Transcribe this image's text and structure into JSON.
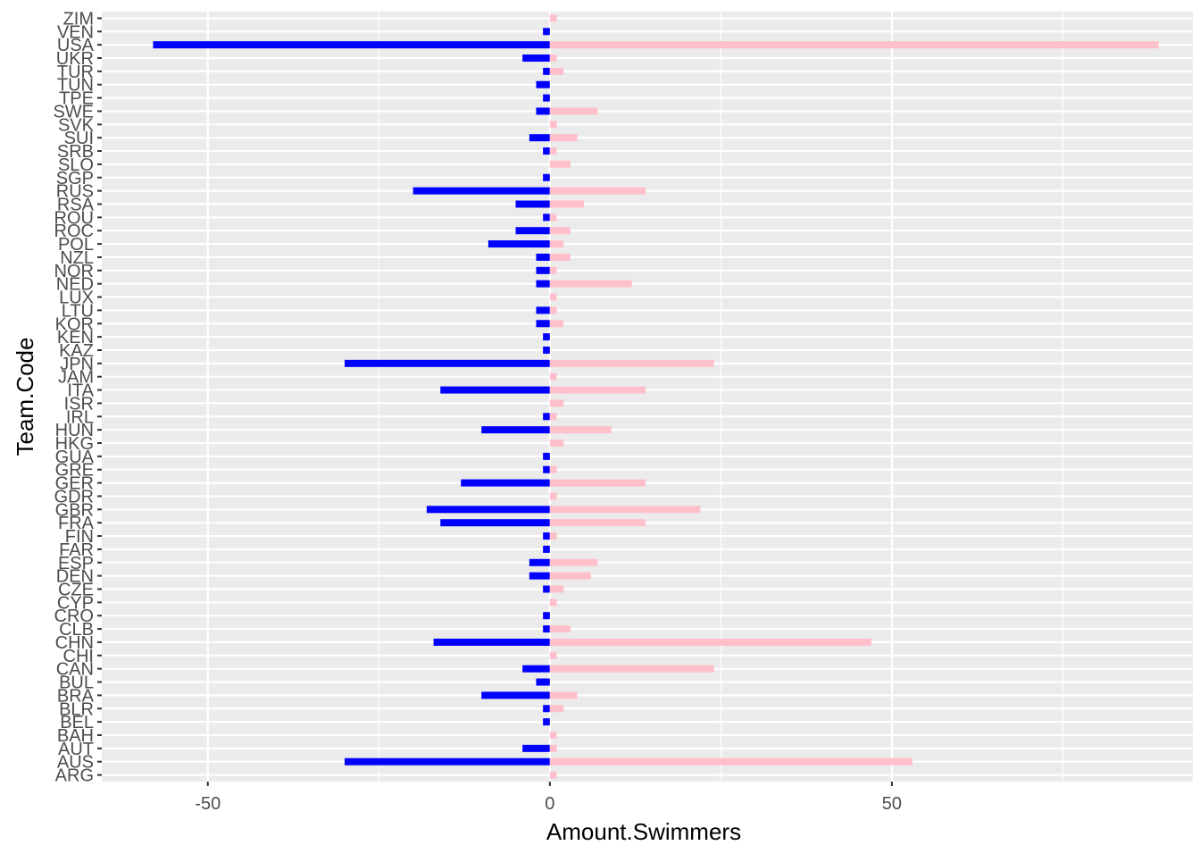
{
  "chart_data": {
    "type": "bar",
    "orientation": "horizontal",
    "title": "",
    "xlabel": "Amount.Swimmers",
    "ylabel": "Team.Code",
    "xlim": [
      -65.5,
      94
    ],
    "x_ticks": [
      -50,
      0,
      50
    ],
    "x_tick_labels": [
      "-50",
      "0",
      "50"
    ],
    "grid": true,
    "legend": "none",
    "colors": {
      "negative": "#0000ff",
      "positive": "#ffc0cb",
      "panel": "#ebebeb",
      "grid": "#ffffff",
      "text": "#4d4d4d"
    },
    "categories": [
      "ARG",
      "AUS",
      "AUT",
      "BAH",
      "BEL",
      "BLR",
      "BRA",
      "BUL",
      "CAN",
      "CHI",
      "CHN",
      "CLB",
      "CRO",
      "CYP",
      "CZE",
      "DEN",
      "ESP",
      "FAR",
      "FIN",
      "FRA",
      "GBR",
      "GDR",
      "GER",
      "GRE",
      "GUA",
      "HKG",
      "HUN",
      "IRL",
      "ISR",
      "ITA",
      "JAM",
      "JPN",
      "KAZ",
      "KEN",
      "KOR",
      "LTU",
      "LUX",
      "NED",
      "NOR",
      "NZL",
      "POL",
      "ROC",
      "ROU",
      "RSA",
      "RUS",
      "SGP",
      "SLO",
      "SRB",
      "SUI",
      "SVK",
      "SWE",
      "TPE",
      "TUN",
      "TUR",
      "UKR",
      "USA",
      "VEN",
      "ZIM"
    ],
    "series": [
      {
        "values": [
          0,
          -30,
          -4,
          0,
          -1,
          -1,
          -10,
          -2,
          -4,
          0,
          -17,
          -1,
          -1,
          0,
          -1,
          -3,
          -3,
          -1,
          -1,
          -16,
          -18,
          0,
          -13,
          -1,
          -1,
          0,
          -10,
          -1,
          0,
          -16,
          0,
          -30,
          -1,
          -1,
          -2,
          -2,
          0,
          -2,
          -2,
          -2,
          -9,
          -5,
          -1,
          -5,
          -20,
          -1,
          0,
          -1,
          -3,
          0,
          -2,
          -1,
          -2,
          -1,
          -4,
          -58,
          -1,
          0
        ]
      },
      {
        "values": [
          1,
          53,
          1,
          1,
          0,
          2,
          4,
          0,
          24,
          1,
          47,
          3,
          0,
          1,
          2,
          6,
          7,
          0,
          1,
          14,
          22,
          1,
          14,
          1,
          0,
          2,
          9,
          1,
          2,
          14,
          1,
          24,
          0,
          0,
          2,
          1,
          1,
          12,
          1,
          3,
          2,
          3,
          1,
          5,
          14,
          0,
          3,
          1,
          4,
          1,
          7,
          0,
          0,
          2,
          1,
          89,
          0,
          1
        ]
      }
    ]
  }
}
